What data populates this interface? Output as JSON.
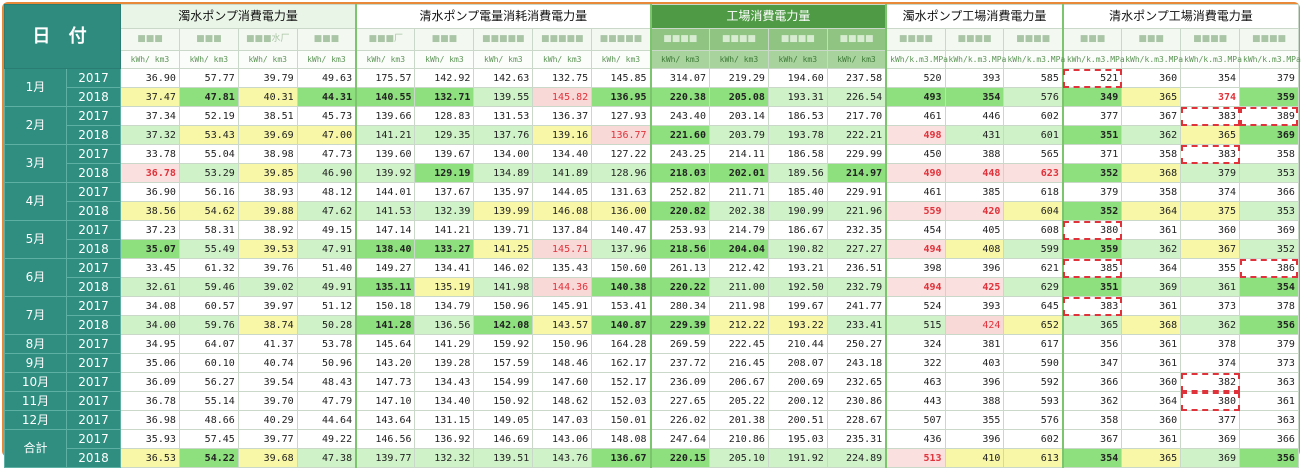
{
  "header": {
    "corner": "日 付",
    "groups": [
      {
        "label": "濁水ポンプ消費電力量",
        "cols": 4,
        "style": "g1"
      },
      {
        "label": "清水ポンプ電量消耗消費電力量",
        "cols": 5,
        "style": ""
      },
      {
        "label": "工場消費電力量",
        "cols": 4,
        "style": "dark"
      },
      {
        "label": "濁水ポンプ工場消費電力量",
        "cols": 3,
        "style": ""
      },
      {
        "label": "清水ポンプ工場消費電力量",
        "cols": 4,
        "style": ""
      }
    ],
    "subs": [
      "■■■",
      "■■■",
      "■■■水厂",
      "■■■",
      "■■■厂",
      "■■■",
      "■■■■■",
      "■■■■■",
      "■■■■■",
      "■■■■",
      "■■■■",
      "■■■■",
      "■■■■",
      "■■■■",
      "■■■■",
      "■■■■",
      "■■■",
      "■■■",
      "■■■■",
      "■■■■"
    ],
    "units": [
      "kWh/ km3",
      "kWh/ km3",
      "kWh/ km3",
      "kWh/ km3",
      "kWh/ km3",
      "kWh/ km3",
      "kWh/ km3",
      "kWh/ km3",
      "kWh/ km3",
      "kWh/ km3",
      "kWh/ km3",
      "kWh/ km3",
      "kWh/ km3",
      "kWh/k.m3.MPa",
      "kWh/k.m3.MPa",
      "kWh/k.m3.MPa",
      "kWh/k.m3.MPa",
      "kWh/k.m3.MPa",
      "kWh/k.m3.MPa",
      "kWh/k.m3.MPa"
    ]
  },
  "rows": [
    {
      "month": "1月",
      "span": 2,
      "year": "2017",
      "v": [
        "36.90",
        "57.77",
        "39.79",
        "49.63",
        "175.57",
        "142.92",
        "142.63",
        "132.75",
        "145.85",
        "314.07",
        "219.29",
        "194.60",
        "237.58",
        "520",
        "393",
        "585",
        "521",
        "360",
        "354",
        "379"
      ],
      "s": {
        "16": "dash"
      }
    },
    {
      "year": "2018",
      "v": [
        "37.47",
        "47.81",
        "40.31",
        "44.31",
        "140.55",
        "132.71",
        "139.55",
        "145.82",
        "136.95",
        "220.38",
        "205.08",
        "193.31",
        "226.54",
        "493",
        "354",
        "576",
        "349",
        "365",
        "374",
        "359"
      ],
      "s": {
        "0": "hl-y",
        "1": "hl-G",
        "2": "hl-y",
        "3": "hl-G",
        "4": "hl-G",
        "5": "hl-G",
        "6": "hl-g",
        "7": "hl-p",
        "8": "hl-G",
        "9": "hl-G",
        "10": "hl-G",
        "11": "hl-g",
        "12": "hl-g",
        "13": "hl-G",
        "14": "hl-G",
        "15": "hl-g",
        "16": "hl-G",
        "17": "hl-y",
        "18": "redtxt",
        "19": "hl-G"
      }
    },
    {
      "month": "2月",
      "span": 2,
      "year": "2017",
      "v": [
        "37.34",
        "52.19",
        "38.51",
        "45.73",
        "139.66",
        "128.83",
        "131.53",
        "136.37",
        "127.93",
        "243.40",
        "203.14",
        "186.53",
        "217.70",
        "461",
        "446",
        "602",
        "377",
        "367",
        "383",
        "389"
      ],
      "s": {
        "18": "dash",
        "19": "dash"
      }
    },
    {
      "year": "2018",
      "v": [
        "37.32",
        "53.43",
        "39.69",
        "47.00",
        "141.21",
        "129.35",
        "137.76",
        "139.16",
        "136.77",
        "221.60",
        "203.79",
        "193.78",
        "222.21",
        "498",
        "431",
        "601",
        "351",
        "362",
        "365",
        "369"
      ],
      "s": {
        "0": "hl-g",
        "1": "hl-y",
        "2": "hl-y",
        "3": "hl-y",
        "4": "hl-g",
        "5": "hl-g",
        "6": "hl-g",
        "7": "hl-y",
        "8": "hl-p",
        "9": "hl-G",
        "10": "hl-g",
        "11": "hl-g",
        "12": "hl-g",
        "13": "hl-r",
        "14": "hl-g",
        "15": "hl-g",
        "16": "hl-G",
        "17": "hl-g",
        "18": "hl-y",
        "19": "hl-G"
      }
    },
    {
      "month": "3月",
      "span": 2,
      "year": "2017",
      "v": [
        "33.78",
        "55.04",
        "38.98",
        "47.73",
        "139.60",
        "139.67",
        "134.00",
        "134.40",
        "127.22",
        "243.25",
        "214.11",
        "186.58",
        "229.99",
        "450",
        "388",
        "565",
        "371",
        "358",
        "383",
        "358"
      ],
      "s": {
        "18": "dash"
      }
    },
    {
      "year": "2018",
      "v": [
        "36.78",
        "53.29",
        "39.85",
        "46.90",
        "139.92",
        "129.19",
        "134.89",
        "141.89",
        "128.96",
        "218.03",
        "202.01",
        "189.56",
        "214.97",
        "490",
        "448",
        "623",
        "352",
        "368",
        "379",
        "353"
      ],
      "s": {
        "0": "hl-r",
        "1": "hl-g",
        "2": "hl-y",
        "3": "hl-g",
        "4": "hl-g",
        "5": "hl-G",
        "6": "hl-g",
        "7": "hl-g",
        "8": "hl-g",
        "9": "hl-G",
        "10": "hl-G",
        "11": "hl-g",
        "12": "hl-G",
        "13": "hl-r",
        "14": "hl-r",
        "15": "hl-r",
        "16": "hl-G",
        "17": "hl-y",
        "18": "hl-g",
        "19": "hl-g"
      }
    },
    {
      "month": "4月",
      "span": 2,
      "year": "2017",
      "v": [
        "36.90",
        "56.16",
        "38.93",
        "48.12",
        "144.01",
        "137.67",
        "135.97",
        "144.05",
        "131.63",
        "252.82",
        "211.71",
        "185.40",
        "229.91",
        "461",
        "385",
        "618",
        "379",
        "358",
        "374",
        "366"
      ],
      "s": {}
    },
    {
      "year": "2018",
      "v": [
        "38.56",
        "54.62",
        "39.88",
        "47.62",
        "141.53",
        "132.39",
        "139.99",
        "146.08",
        "136.00",
        "220.82",
        "202.38",
        "190.99",
        "221.96",
        "559",
        "420",
        "604",
        "352",
        "364",
        "375",
        "353"
      ],
      "s": {
        "0": "hl-y",
        "1": "hl-y",
        "2": "hl-y",
        "3": "hl-g",
        "4": "hl-g",
        "5": "hl-g",
        "6": "hl-y",
        "7": "hl-y",
        "8": "hl-y",
        "9": "hl-G",
        "10": "hl-g",
        "11": "hl-g",
        "12": "hl-g",
        "13": "hl-r",
        "14": "hl-r",
        "15": "hl-y",
        "16": "hl-G",
        "17": "hl-y",
        "18": "hl-y",
        "19": "hl-g"
      }
    },
    {
      "month": "5月",
      "span": 2,
      "year": "2017",
      "v": [
        "37.23",
        "58.31",
        "38.92",
        "49.15",
        "147.14",
        "141.21",
        "139.71",
        "137.84",
        "140.47",
        "253.93",
        "214.79",
        "186.67",
        "232.35",
        "454",
        "405",
        "608",
        "380",
        "361",
        "360",
        "369"
      ],
      "s": {
        "16": "dash"
      }
    },
    {
      "year": "2018",
      "v": [
        "35.07",
        "55.49",
        "39.53",
        "47.91",
        "138.40",
        "133.27",
        "141.25",
        "145.71",
        "137.96",
        "218.56",
        "204.04",
        "190.82",
        "227.27",
        "494",
        "408",
        "599",
        "359",
        "362",
        "367",
        "352"
      ],
      "s": {
        "0": "hl-G",
        "1": "hl-g",
        "2": "hl-y",
        "3": "hl-g",
        "4": "hl-G",
        "5": "hl-G",
        "6": "hl-y",
        "7": "hl-p",
        "8": "hl-g",
        "9": "hl-G",
        "10": "hl-G",
        "11": "hl-g",
        "12": "hl-g",
        "13": "hl-r",
        "14": "hl-y",
        "15": "hl-g",
        "16": "hl-G",
        "17": "hl-g",
        "18": "hl-y",
        "19": "hl-g"
      }
    },
    {
      "month": "6月",
      "span": 2,
      "year": "2017",
      "v": [
        "33.45",
        "61.32",
        "39.76",
        "51.40",
        "149.27",
        "134.41",
        "146.02",
        "135.43",
        "150.60",
        "261.13",
        "212.42",
        "193.21",
        "236.51",
        "398",
        "396",
        "621",
        "385",
        "364",
        "355",
        "386"
      ],
      "s": {
        "16": "dash",
        "19": "dash"
      }
    },
    {
      "year": "2018",
      "v": [
        "32.61",
        "59.46",
        "39.02",
        "49.91",
        "135.11",
        "135.19",
        "141.98",
        "144.36",
        "140.38",
        "220.22",
        "211.00",
        "192.50",
        "232.79",
        "494",
        "425",
        "629",
        "351",
        "369",
        "361",
        "354"
      ],
      "s": {
        "0": "hl-g",
        "1": "hl-g",
        "2": "hl-g",
        "3": "hl-g",
        "4": "hl-G",
        "5": "hl-y",
        "6": "hl-g",
        "7": "hl-p",
        "8": "hl-G",
        "9": "hl-G",
        "10": "hl-g",
        "11": "hl-g",
        "12": "hl-g",
        "13": "hl-r",
        "14": "hl-r",
        "15": "hl-g",
        "16": "hl-G",
        "17": "hl-g",
        "18": "hl-g",
        "19": "hl-G"
      }
    },
    {
      "month": "7月",
      "span": 2,
      "year": "2017",
      "v": [
        "34.08",
        "60.57",
        "39.97",
        "51.12",
        "150.18",
        "134.79",
        "150.96",
        "145.91",
        "153.41",
        "280.34",
        "211.98",
        "199.67",
        "241.77",
        "524",
        "393",
        "645",
        "383",
        "361",
        "373",
        "378"
      ],
      "s": {
        "16": "dash"
      }
    },
    {
      "year": "2018",
      "v": [
        "34.00",
        "59.76",
        "38.74",
        "50.28",
        "141.28",
        "136.56",
        "142.08",
        "143.57",
        "140.87",
        "229.39",
        "212.22",
        "193.22",
        "233.41",
        "515",
        "424",
        "652",
        "365",
        "368",
        "362",
        "356"
      ],
      "s": {
        "0": "hl-g",
        "1": "hl-g",
        "2": "hl-y",
        "3": "hl-g",
        "4": "hl-G",
        "5": "hl-g",
        "6": "hl-G",
        "7": "hl-y",
        "8": "hl-G",
        "9": "hl-G",
        "10": "hl-y",
        "11": "hl-y",
        "12": "hl-g",
        "13": "hl-g",
        "14": "hl-p",
        "15": "hl-y",
        "16": "hl-g",
        "17": "hl-y",
        "18": "hl-g",
        "19": "hl-G"
      }
    },
    {
      "month": "8月",
      "span": 1,
      "year": "2017",
      "v": [
        "34.95",
        "64.07",
        "41.37",
        "53.78",
        "145.64",
        "141.29",
        "159.92",
        "150.96",
        "164.28",
        "269.59",
        "222.45",
        "210.44",
        "250.27",
        "324",
        "381",
        "617",
        "356",
        "361",
        "378",
        "379"
      ],
      "s": {}
    },
    {
      "month": "9月",
      "span": 1,
      "year": "2017",
      "v": [
        "35.06",
        "60.10",
        "40.74",
        "50.96",
        "143.20",
        "139.28",
        "157.59",
        "148.46",
        "162.17",
        "237.72",
        "216.45",
        "208.07",
        "243.18",
        "322",
        "403",
        "590",
        "347",
        "361",
        "374",
        "373"
      ],
      "s": {}
    },
    {
      "month": "10月",
      "span": 1,
      "year": "2017",
      "v": [
        "36.09",
        "56.27",
        "39.54",
        "48.43",
        "147.73",
        "134.43",
        "154.99",
        "147.60",
        "152.17",
        "236.09",
        "206.67",
        "200.69",
        "232.65",
        "463",
        "396",
        "592",
        "366",
        "360",
        "382",
        "363"
      ],
      "s": {
        "18": "dash"
      }
    },
    {
      "month": "11月",
      "span": 1,
      "year": "2017",
      "v": [
        "36.78",
        "55.14",
        "39.70",
        "47.79",
        "147.10",
        "134.40",
        "150.92",
        "148.62",
        "152.03",
        "227.65",
        "205.22",
        "200.12",
        "230.86",
        "443",
        "388",
        "593",
        "362",
        "364",
        "380",
        "361"
      ],
      "s": {
        "18": "dash"
      }
    },
    {
      "month": "12月",
      "span": 1,
      "year": "2017",
      "v": [
        "36.98",
        "48.66",
        "40.29",
        "44.64",
        "143.64",
        "131.15",
        "149.05",
        "147.03",
        "150.01",
        "226.02",
        "201.38",
        "200.51",
        "228.67",
        "507",
        "355",
        "576",
        "358",
        "360",
        "377",
        "363"
      ],
      "s": {}
    },
    {
      "month": "合計",
      "span": 2,
      "year": "2017",
      "v": [
        "35.93",
        "57.45",
        "39.77",
        "49.22",
        "146.56",
        "136.92",
        "146.69",
        "143.06",
        "148.08",
        "247.64",
        "210.86",
        "195.03",
        "235.31",
        "436",
        "396",
        "602",
        "367",
        "361",
        "369",
        "366"
      ],
      "s": {}
    },
    {
      "year": "2018",
      "v": [
        "36.53",
        "54.22",
        "39.68",
        "47.38",
        "139.77",
        "132.32",
        "139.51",
        "143.76",
        "136.67",
        "220.15",
        "205.10",
        "191.92",
        "224.89",
        "513",
        "410",
        "613",
        "354",
        "365",
        "369",
        "356"
      ],
      "s": {
        "0": "hl-y",
        "1": "hl-G",
        "2": "hl-y",
        "3": "hl-g",
        "4": "hl-g",
        "5": "hl-g",
        "6": "hl-g",
        "7": "hl-g",
        "8": "hl-G",
        "9": "hl-G",
        "10": "hl-g",
        "11": "hl-g",
        "12": "hl-g",
        "13": "hl-r",
        "14": "hl-y",
        "15": "hl-y",
        "16": "hl-G",
        "17": "hl-y",
        "18": "hl-g",
        "19": "hl-G"
      }
    }
  ]
}
